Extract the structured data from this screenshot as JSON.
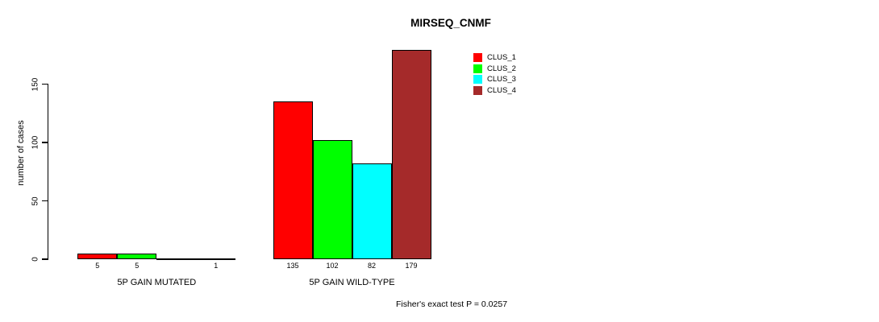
{
  "chart_data": {
    "type": "bar",
    "title": "MIRSEQ_CNMF",
    "ylabel": "number of cases",
    "xlabel": "",
    "footnote": "Fisher's exact test P = 0.0257",
    "ylim": [
      0,
      185
    ],
    "yticks": [
      0,
      50,
      100,
      150
    ],
    "grid": false,
    "legend_position": "top-right-inside",
    "categories": [
      "5P GAIN MUTATED",
      "5P GAIN WILD-TYPE"
    ],
    "series": [
      {
        "name": "CLUS_1",
        "color": "#ff0000",
        "values": [
          5,
          135
        ]
      },
      {
        "name": "CLUS_2",
        "color": "#00ff00",
        "values": [
          5,
          102
        ]
      },
      {
        "name": "CLUS_3",
        "color": "#00ffff",
        "values": [
          0,
          82
        ]
      },
      {
        "name": "CLUS_4",
        "color": "#a52a2a",
        "values": [
          1,
          179
        ]
      }
    ],
    "bar_value_labels": {
      "show": true,
      "hide_zero": true
    },
    "axis_color": "#000000",
    "background_color": "#ffffff"
  }
}
